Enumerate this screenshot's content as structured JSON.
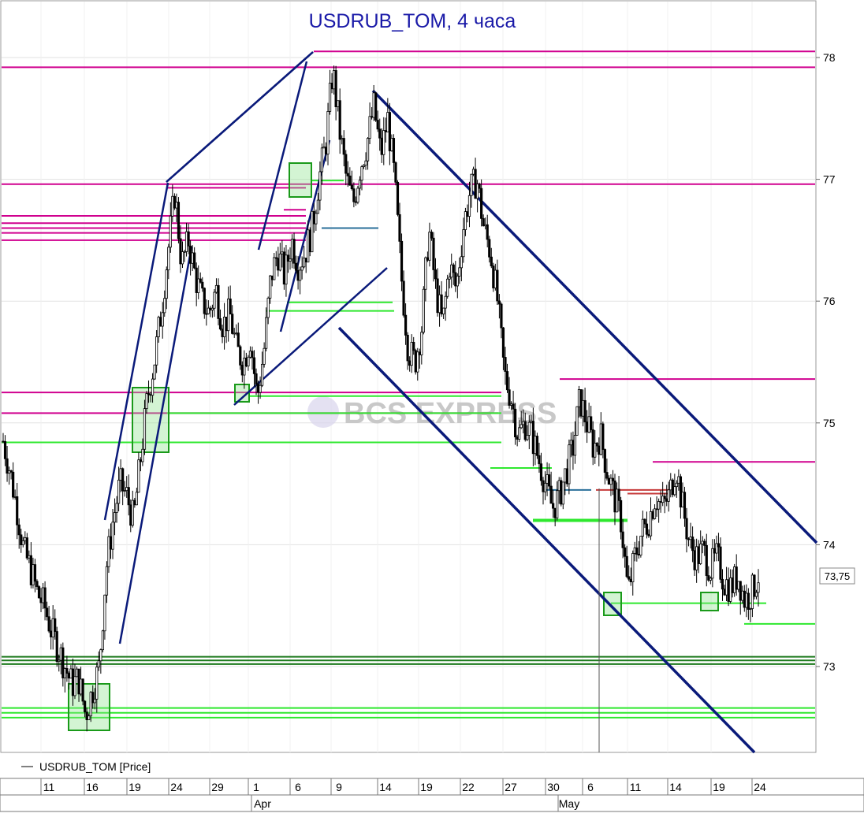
{
  "chart_data": {
    "type": "candlestick",
    "title": "USDRUB_TOM, 4 часа",
    "watermark": "BCS EXPRESS",
    "legend": {
      "label": "USDRUB_TOM [Price]",
      "placement": "bottom-left"
    },
    "last_price_label": "73,75",
    "ylim": [
      72.4,
      78.4
    ],
    "yticks": [
      73,
      74,
      75,
      76,
      77,
      78
    ],
    "grid": true,
    "x_day_ticks": [
      "11",
      "16",
      "19",
      "24",
      "29",
      "1",
      "6",
      "9",
      "14",
      "19",
      "22",
      "27",
      "30",
      "6",
      "11",
      "14",
      "19",
      "24"
    ],
    "x_month_labels": [
      "Apr",
      "May"
    ],
    "price_path": [
      74.85,
      74.6,
      74.3,
      73.95,
      73.8,
      73.6,
      73.5,
      73.3,
      73.15,
      73.0,
      72.85,
      72.9,
      72.6,
      72.8,
      73.0,
      73.8,
      74.2,
      74.5,
      74.4,
      74.2,
      74.7,
      75.2,
      75.5,
      75.9,
      76.4,
      76.9,
      76.3,
      76.5,
      76.2,
      76.0,
      75.9,
      76.1,
      75.8,
      75.9,
      75.6,
      75.5,
      75.7,
      75.2,
      75.6,
      76.2,
      76.4,
      76.2,
      76.5,
      76.3,
      76.4,
      76.6,
      77.0,
      77.3,
      77.9,
      77.4,
      77.0,
      76.8,
      77.1,
      77.3,
      77.6,
      77.2,
      77.5,
      77.0,
      76.2,
      75.6,
      75.5,
      75.8,
      76.6,
      76.1,
      75.8,
      76.3,
      76.1,
      76.6,
      76.9,
      77.0,
      76.6,
      76.4,
      76.0,
      75.4,
      75.2,
      74.9,
      75.0,
      74.9,
      74.7,
      74.5,
      74.3,
      74.4,
      74.6,
      74.8,
      75.2,
      75.0,
      74.8,
      74.9,
      74.6,
      74.4,
      74.2,
      73.6,
      73.9,
      74.1,
      74.2,
      74.4,
      74.3,
      74.4,
      74.65,
      74.3,
      74.0,
      73.9,
      73.95,
      73.8,
      73.9,
      73.7,
      73.65,
      73.75,
      73.55,
      73.6,
      73.75
    ],
    "horizontal_levels": [
      {
        "color": "#d0008f",
        "values": [
          77.92,
          76.96,
          76.7,
          76.64,
          76.6,
          76.56,
          76.5,
          75.25,
          75.08,
          74.84
        ]
      },
      {
        "color": "#2ee82e",
        "values": [
          73.08,
          73.05,
          73.02,
          72.66,
          72.62,
          72.58,
          73.52,
          73.35,
          74.2,
          74.63
        ]
      }
    ],
    "trendlines": [
      {
        "name": "channel-upper",
        "color": "#0a1a7a",
        "from": [
          "2021-04-09",
          77.7
        ],
        "to": [
          "2021-05-24",
          74.0
        ]
      },
      {
        "name": "channel-lower",
        "color": "#0a1a7a",
        "from": [
          "2021-04-07",
          75.8
        ],
        "to": [
          "2021-05-24",
          72.45
        ]
      }
    ]
  }
}
